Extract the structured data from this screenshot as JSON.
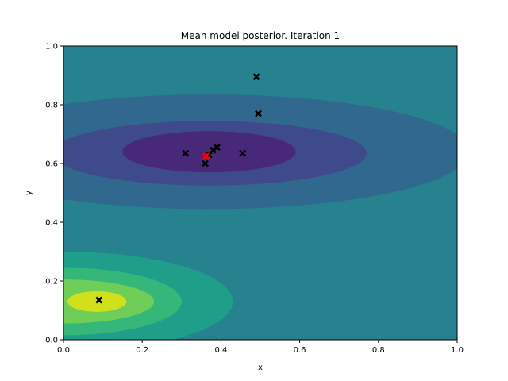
{
  "chart_data": {
    "type": "contour",
    "title": "Mean model posterior. Iteration 1",
    "xlabel": "x",
    "ylabel": "y",
    "xlim": [
      0.0,
      1.0
    ],
    "ylim": [
      0.0,
      1.0
    ],
    "x_ticks": [
      "0.0",
      "0.2",
      "0.4",
      "0.6",
      "0.8",
      "1.0"
    ],
    "y_ticks": [
      "0.0",
      "0.2",
      "0.4",
      "0.6",
      "0.8",
      "1.0"
    ],
    "grid": false,
    "background_color": "#26828e",
    "level_colors": [
      "#440154",
      "#482878",
      "#3e4a89",
      "#31688e",
      "#26828e",
      "#1f9e89",
      "#35b779",
      "#6ece58",
      "#b5de2b",
      "#fde725"
    ],
    "contour_regions": [
      {
        "level": "low-1",
        "color": "#31688e",
        "center": [
          0.37,
          0.64
        ],
        "rx": 0.66,
        "ry": 0.195
      },
      {
        "level": "low-2",
        "color": "#3e4a89",
        "center": [
          0.37,
          0.635
        ],
        "rx": 0.4,
        "ry": 0.11
      },
      {
        "level": "low-3",
        "color": "#482878",
        "center": [
          0.37,
          0.64
        ],
        "rx": 0.22,
        "ry": 0.07
      },
      {
        "level": "high-1",
        "color": "#1f9e89",
        "center": [
          0.0,
          0.13
        ],
        "rx": 0.43,
        "ry": 0.17
      },
      {
        "level": "high-2",
        "color": "#35b779",
        "center": [
          0.0,
          0.13
        ],
        "rx": 0.3,
        "ry": 0.115
      },
      {
        "level": "high-3",
        "color": "#6ece58",
        "center": [
          0.0,
          0.13
        ],
        "rx": 0.23,
        "ry": 0.075
      },
      {
        "level": "high-4",
        "color": "#d0e11c",
        "center": [
          0.085,
          0.13
        ],
        "rx": 0.075,
        "ry": 0.035
      }
    ],
    "series": [
      {
        "marker": "X",
        "color": "#000000",
        "points": [
          {
            "x": 0.49,
            "y": 0.895
          },
          {
            "x": 0.495,
            "y": 0.77
          },
          {
            "x": 0.31,
            "y": 0.635
          },
          {
            "x": 0.39,
            "y": 0.655
          },
          {
            "x": 0.38,
            "y": 0.645
          },
          {
            "x": 0.37,
            "y": 0.63
          },
          {
            "x": 0.36,
            "y": 0.6
          },
          {
            "x": 0.455,
            "y": 0.635
          },
          {
            "x": 0.09,
            "y": 0.135
          }
        ]
      },
      {
        "marker": "X",
        "color": "#ff0000",
        "points": [
          {
            "x": 0.362,
            "y": 0.625
          }
        ]
      }
    ]
  }
}
